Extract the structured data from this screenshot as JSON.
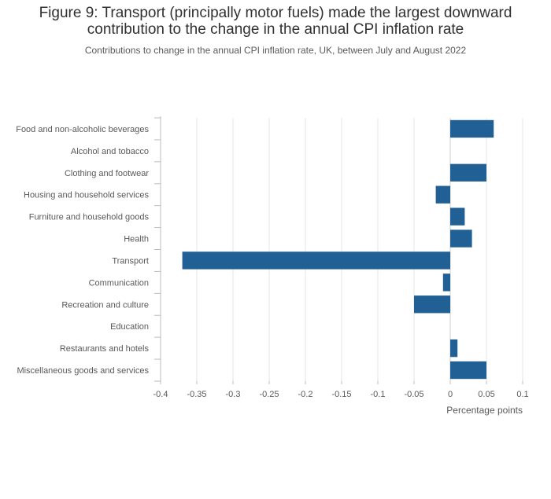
{
  "title_lines": [
    "Figure 9: Transport (principally motor fuels) made the largest downward",
    "contribution to the change in the annual CPI inflation rate"
  ],
  "subtitle": "Contributions to change in the annual CPI inflation rate, UK, between July and August 2022",
  "chart_data": {
    "type": "bar",
    "orientation": "horizontal",
    "title": "Figure 9: Transport (principally motor fuels) made the largest downward contribution to the change in the annual CPI inflation rate",
    "subtitle": "Contributions to change in the annual CPI inflation rate, UK, between July and August 2022",
    "categories": [
      "Food and non-alcoholic beverages",
      "Alcohol and tobacco",
      "Clothing and footwear",
      "Housing and household services",
      "Furniture and household goods",
      "Health",
      "Transport",
      "Communication",
      "Recreation and culture",
      "Education",
      "Restaurants and hotels",
      "Miscellaneous goods and services"
    ],
    "values": [
      0.06,
      0,
      0.05,
      -0.02,
      0.02,
      0.03,
      -0.37,
      -0.01,
      -0.05,
      0,
      0.01,
      0.05
    ],
    "xlabel": "Percentage points",
    "ylabel": "",
    "xlim": [
      -0.4,
      0.1
    ],
    "xticks": [
      -0.4,
      -0.35,
      -0.3,
      -0.25,
      -0.2,
      -0.15,
      -0.1,
      -0.05,
      0,
      0.05,
      0.1
    ],
    "xtick_labels": [
      "-0.4",
      "-0.35",
      "-0.3",
      "-0.25",
      "-0.2",
      "-0.15",
      "-0.1",
      "-0.05",
      "0",
      "0.05",
      "0.1"
    ],
    "grid": true,
    "bar_color": "#206095",
    "grid_color": "#e6e6e6",
    "axis_color": "#bebebe",
    "label_color": "#595959"
  }
}
